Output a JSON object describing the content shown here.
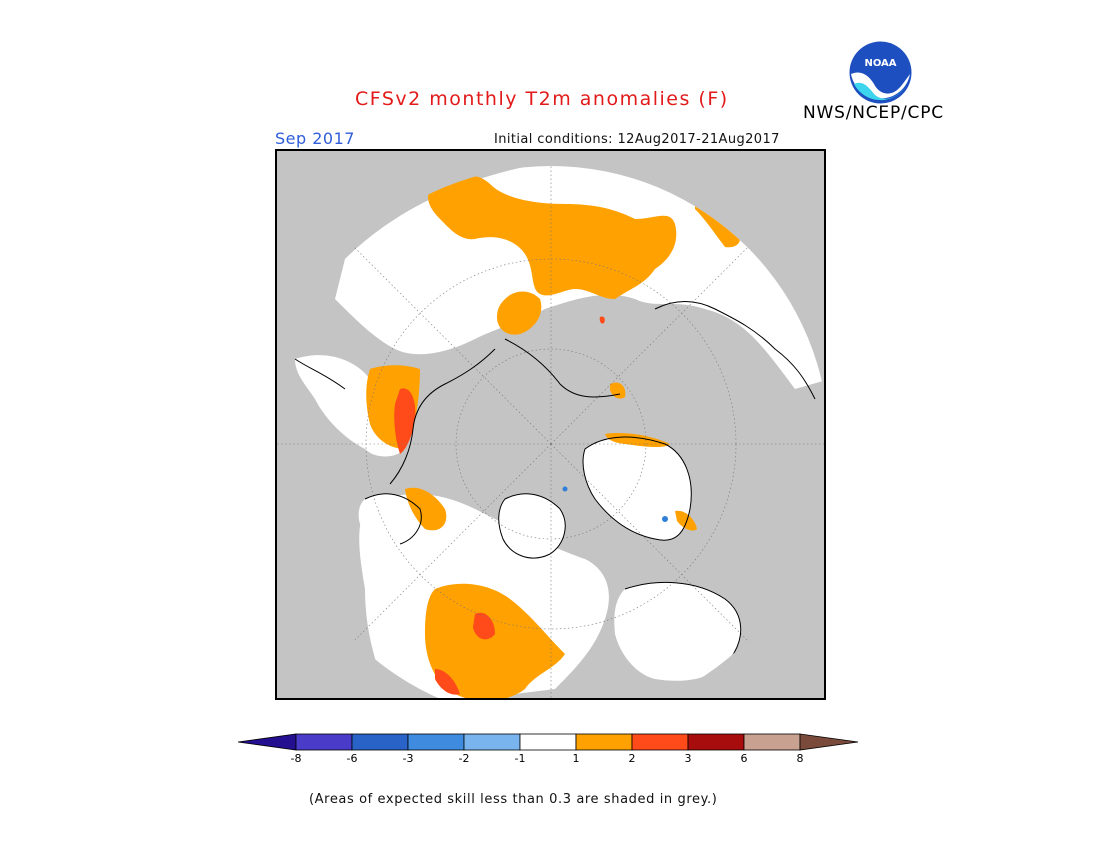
{
  "title": "CFSv2 monthly T2m anomalies (F)",
  "month": "Sep 2017",
  "initial_conditions": "Initial conditions: 12Aug2017-21Aug2017",
  "agency": "NWS/NCEP/CPC",
  "logo_text": "NOAA",
  "footnote": "(Areas of expected skill less than 0.3 are shaded in grey.)",
  "colors": {
    "title": "#e21a1a",
    "month": "#2f5cd8",
    "frame_background": "#c4c4c4",
    "no_skill_grey": "#c4c4c4",
    "land_neutral": "#ffffff",
    "warm_1_2": "#ffa100",
    "warm_2_3": "#ff4a1a",
    "cool_small": "#2f7fd8"
  },
  "legend": {
    "bins": [
      {
        "color": "#230f8f"
      },
      {
        "color": "#4a3cc8"
      },
      {
        "color": "#2a63c8"
      },
      {
        "color": "#3f8be0"
      },
      {
        "color": "#7ab4ee"
      },
      {
        "color": "#ffffff"
      },
      {
        "color": "#ffa100"
      },
      {
        "color": "#ff4a1a"
      },
      {
        "color": "#a80d0d"
      },
      {
        "color": "#c9a190"
      },
      {
        "color": "#7a4a3a"
      }
    ],
    "labels": [
      "-8",
      "-6",
      "-3",
      "-2",
      "-1",
      "1",
      "2",
      "3",
      "6",
      "8"
    ]
  }
}
